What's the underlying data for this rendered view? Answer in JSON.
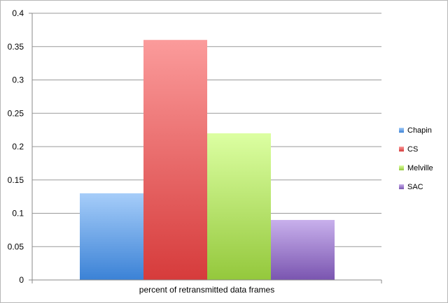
{
  "chart_data": {
    "type": "bar",
    "categories": [
      "percent of retransmitted data frames"
    ],
    "series": [
      {
        "name": "Chapin",
        "values": [
          0.13
        ]
      },
      {
        "name": "CS",
        "values": [
          0.36
        ]
      },
      {
        "name": "Melville",
        "values": [
          0.22
        ]
      },
      {
        "name": "SAC",
        "values": [
          0.09
        ]
      }
    ],
    "ylim": [
      0,
      0.4
    ],
    "yticks": [
      "0",
      "0.05",
      "0.1",
      "0.15",
      "0.2",
      "0.25",
      "0.3",
      "0.35",
      "0.4"
    ],
    "grid": true,
    "legend_position": "right",
    "colors": {
      "Chapin": {
        "top": "#a6cdf9",
        "bottom": "#3b82d6"
      },
      "CS": {
        "top": "#fb9b9b",
        "bottom": "#d63b3b"
      },
      "Melville": {
        "top": "#dcffa2",
        "bottom": "#94c83c"
      },
      "SAC": {
        "top": "#c8b0ec",
        "bottom": "#7a55b0"
      }
    },
    "gridline_color": "#9a9a9a",
    "axis_color": "#8a8a8a"
  }
}
